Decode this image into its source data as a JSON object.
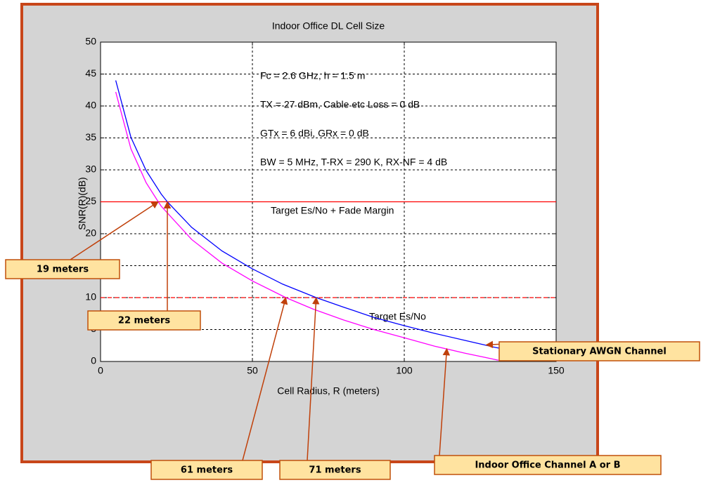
{
  "chart_data": {
    "type": "line",
    "title": "Indoor Office DL Cell Size",
    "xlabel": "Cell Radius, R   (meters)",
    "ylabel": "SNR(R)(dB)",
    "xlim": [
      0,
      150
    ],
    "ylim": [
      0,
      50
    ],
    "xticks": [
      0,
      50,
      100,
      150
    ],
    "yticks": [
      0,
      5,
      10,
      15,
      20,
      25,
      30,
      35,
      40,
      45,
      50
    ],
    "grid": true,
    "series": [
      {
        "name": "Stationary AWGN Channel",
        "color": "#0000ff",
        "x": [
          5,
          10,
          15,
          20,
          22,
          30,
          40,
          50,
          60,
          71,
          80,
          90,
          100,
          110,
          120,
          130,
          140,
          150
        ],
        "values": [
          44.0,
          35.1,
          29.9,
          26.2,
          25.0,
          21.0,
          17.3,
          14.5,
          12.1,
          10.0,
          8.5,
          6.9,
          5.6,
          4.4,
          3.3,
          2.2,
          1.3,
          0.4
        ]
      },
      {
        "name": "Indoor Office Channel A or B",
        "color": "#ff00ff",
        "x": [
          5,
          10,
          15,
          19,
          20,
          30,
          40,
          50,
          61,
          70,
          80,
          90,
          100,
          110,
          120,
          131
        ],
        "values": [
          42.2,
          33.3,
          28.0,
          25.0,
          24.3,
          19.1,
          15.4,
          12.6,
          10.0,
          8.2,
          6.5,
          5.0,
          3.7,
          2.4,
          1.3,
          0.2
        ]
      }
    ],
    "reference_lines": [
      {
        "value": 25,
        "label": "Target Es/No + Fade Margin",
        "style": "solid",
        "color": "#ff0000"
      },
      {
        "value": 10,
        "label": "Target Es/No",
        "style": "dashed",
        "color": "#ff0000"
      }
    ],
    "notes": [
      "Fc = 2.6 GHz,  h = 1.5 m",
      "TX = 27 dBm,  Cable etc Loss =  0 dB",
      "GTx =  6 dBi,   GRx =  0 dB",
      "BW = 5 MHz,  T-RX = 290 K,   RX-NF =  4 dB"
    ],
    "annotations": [
      {
        "text": "19 meters",
        "x": 19,
        "y": 25
      },
      {
        "text": "22 meters",
        "x": 22,
        "y": 25
      },
      {
        "text": "61 meters",
        "x": 61,
        "y": 10
      },
      {
        "text": "71 meters",
        "x": 71,
        "y": 10
      },
      {
        "text": "Stationary AWGN Channel",
        "x": 127,
        "y": 2.6
      },
      {
        "text": "Indoor Office Channel A or B",
        "x": 114,
        "y": 2.0
      }
    ]
  }
}
